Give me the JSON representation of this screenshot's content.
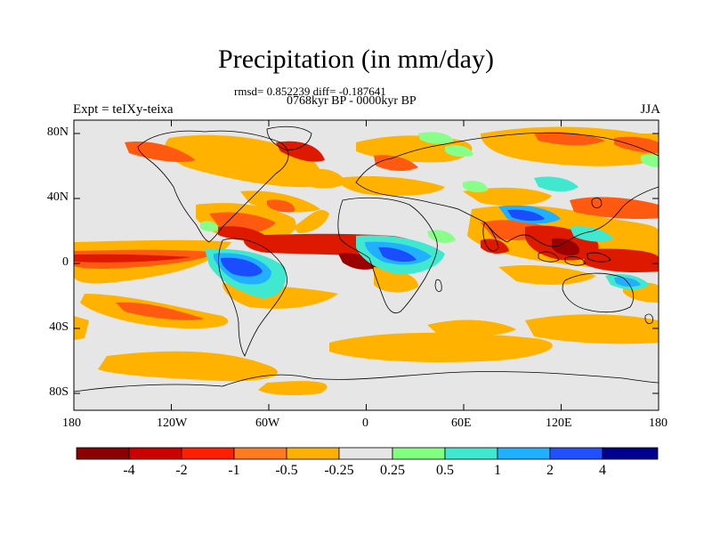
{
  "title": "Precipitation (in mm/day)",
  "stats": "rmsd= 0.852239 diff= -0.187641",
  "period": "0768kyr BP - 0000kyr BP",
  "experiment": "Expt = teIXy-teixa",
  "season": "JJA",
  "axes": {
    "x_ticks": [
      "180",
      "120W",
      "60W",
      "0",
      "60E",
      "120E",
      "180"
    ],
    "y_ticks": [
      "80N",
      "40N",
      "0",
      "40S",
      "80S"
    ]
  },
  "colorbar": {
    "labels": [
      "-4",
      "-2",
      "-1",
      "-0.5",
      "-0.25",
      "0.25",
      "0.5",
      "1",
      "2",
      "4"
    ],
    "colors": [
      "#8b0000",
      "#cd0000",
      "#ff2000",
      "#ff7a20",
      "#ffb000",
      "#e6e6e6",
      "#80ff80",
      "#40e8d0",
      "#20b0ff",
      "#2050ff",
      "#000090"
    ]
  },
  "map_colors": {
    "background": "#e6e6e6",
    "dark_red": "#9b0000",
    "red": "#dd1a00",
    "orange_red": "#ff5a10",
    "orange": "#ff9a20",
    "yellow_orange": "#ffb300",
    "light_green": "#88ff88",
    "teal": "#40e8d0",
    "light_blue": "#20b0ff",
    "blue": "#1a4dff",
    "dark_blue": "#1010a0",
    "coast": "#000000"
  }
}
